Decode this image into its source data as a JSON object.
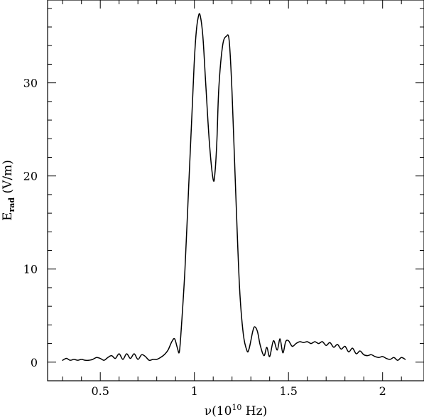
{
  "chart_data": {
    "type": "line",
    "title": "",
    "xlabel": {
      "prefix": "ν(10",
      "exponent": "10",
      "suffix": " Hz)"
    },
    "ylabel": {
      "main": "E",
      "subscript": "rad",
      "suffix": " (V/m)"
    },
    "xlim": [
      0.22,
      2.22
    ],
    "ylim": [
      -2.0,
      38.9
    ],
    "x_ticks": [
      0.5,
      1,
      1.5,
      2
    ],
    "x_tick_labels": [
      "0.5",
      "1",
      "1.5",
      "2"
    ],
    "y_ticks": [
      0,
      10,
      20,
      30
    ],
    "y_tick_labels": [
      "0",
      "10",
      "20",
      "30"
    ],
    "grid": false,
    "legend": "none",
    "color": "#000000",
    "series": [
      {
        "x": [
          0.3,
          0.32,
          0.34,
          0.36,
          0.38,
          0.4,
          0.42,
          0.44,
          0.46,
          0.48,
          0.5,
          0.52,
          0.54,
          0.56,
          0.58,
          0.6,
          0.62,
          0.64,
          0.66,
          0.68,
          0.7,
          0.72,
          0.74,
          0.76,
          0.78,
          0.8,
          0.82,
          0.84,
          0.86,
          0.88,
          0.895,
          0.91,
          0.92,
          0.93,
          0.95,
          0.97,
          0.99,
          1.0,
          1.01,
          1.02,
          1.03,
          1.045,
          1.06,
          1.08,
          1.1,
          1.11,
          1.12,
          1.13,
          1.15,
          1.17,
          1.185,
          1.2,
          1.22,
          1.24,
          1.26,
          1.28,
          1.29,
          1.3,
          1.31,
          1.32,
          1.335,
          1.35,
          1.37,
          1.385,
          1.4,
          1.42,
          1.44,
          1.455,
          1.47,
          1.485,
          1.5,
          1.52,
          1.54,
          1.56,
          1.58,
          1.6,
          1.62,
          1.64,
          1.66,
          1.68,
          1.7,
          1.72,
          1.74,
          1.76,
          1.78,
          1.8,
          1.82,
          1.84,
          1.86,
          1.88,
          1.9,
          1.92,
          1.94,
          1.96,
          1.98,
          2.0,
          2.02,
          2.04,
          2.06,
          2.08,
          2.1,
          2.12
        ],
        "y": [
          0.2,
          0.4,
          0.2,
          0.3,
          0.2,
          0.3,
          0.2,
          0.2,
          0.3,
          0.5,
          0.4,
          0.2,
          0.5,
          0.7,
          0.4,
          0.9,
          0.3,
          0.9,
          0.4,
          0.9,
          0.3,
          0.8,
          0.6,
          0.2,
          0.3,
          0.3,
          0.5,
          0.8,
          1.3,
          2.2,
          2.5,
          1.5,
          1.1,
          3.5,
          10.0,
          19.0,
          28.0,
          32.5,
          35.5,
          37.0,
          37.3,
          35.0,
          30.0,
          23.5,
          19.6,
          20.5,
          24.0,
          29.5,
          34.0,
          35.0,
          34.5,
          29.0,
          18.0,
          8.0,
          3.0,
          1.2,
          1.4,
          2.3,
          3.3,
          3.8,
          3.3,
          1.8,
          0.7,
          1.6,
          0.6,
          2.3,
          1.3,
          2.5,
          1.0,
          2.2,
          2.3,
          1.7,
          2.0,
          2.2,
          2.1,
          2.2,
          2.0,
          2.2,
          2.0,
          2.2,
          1.8,
          2.1,
          1.6,
          1.9,
          1.4,
          1.7,
          1.1,
          1.5,
          0.9,
          1.2,
          0.8,
          0.7,
          0.8,
          0.6,
          0.5,
          0.6,
          0.4,
          0.3,
          0.5,
          0.2,
          0.5,
          0.3
        ]
      }
    ]
  }
}
